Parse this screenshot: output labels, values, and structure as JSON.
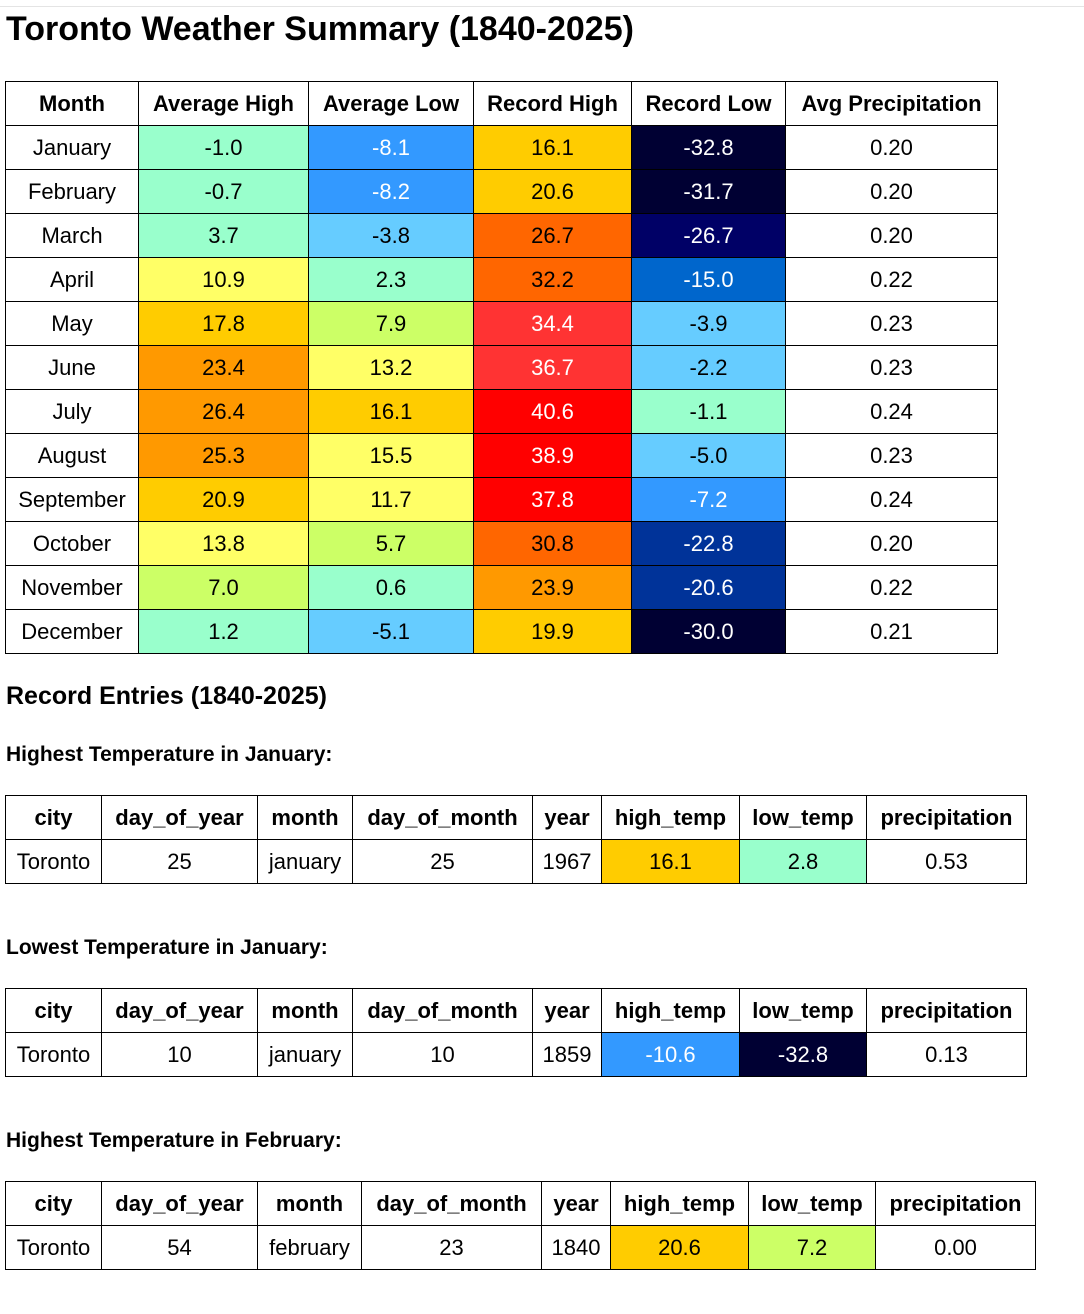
{
  "title": "Toronto Weather Summary (1840-2025)",
  "summary": {
    "headers": [
      "Month",
      "Average High",
      "Average Low",
      "Record High",
      "Record Low",
      "Avg Precipitation"
    ],
    "rows": [
      {
        "cells": [
          "January",
          "-1.0",
          "-8.1",
          "16.1",
          "-32.8",
          "0.20"
        ],
        "bg": [
          "#ffffff",
          "#99ffcc",
          "#3399ff",
          "#ffcc00",
          "#000033",
          "#ffffff"
        ],
        "fg": [
          "#000000",
          "#000000",
          "#ffffff",
          "#000000",
          "#ffffff",
          "#000000"
        ]
      },
      {
        "cells": [
          "February",
          "-0.7",
          "-8.2",
          "20.6",
          "-31.7",
          "0.20"
        ],
        "bg": [
          "#ffffff",
          "#99ffcc",
          "#3399ff",
          "#ffcc00",
          "#000033",
          "#ffffff"
        ],
        "fg": [
          "#000000",
          "#000000",
          "#ffffff",
          "#000000",
          "#ffffff",
          "#000000"
        ]
      },
      {
        "cells": [
          "March",
          "3.7",
          "-3.8",
          "26.7",
          "-26.7",
          "0.20"
        ],
        "bg": [
          "#ffffff",
          "#99ffcc",
          "#66ccff",
          "#ff6600",
          "#000066",
          "#ffffff"
        ],
        "fg": [
          "#000000",
          "#000000",
          "#000000",
          "#000000",
          "#ffffff",
          "#000000"
        ]
      },
      {
        "cells": [
          "April",
          "10.9",
          "2.3",
          "32.2",
          "-15.0",
          "0.22"
        ],
        "bg": [
          "#ffffff",
          "#ffff66",
          "#99ffcc",
          "#ff6600",
          "#0066cc",
          "#ffffff"
        ],
        "fg": [
          "#000000",
          "#000000",
          "#000000",
          "#000000",
          "#ffffff",
          "#000000"
        ]
      },
      {
        "cells": [
          "May",
          "17.8",
          "7.9",
          "34.4",
          "-3.9",
          "0.23"
        ],
        "bg": [
          "#ffffff",
          "#ffcc00",
          "#ccff66",
          "#ff3333",
          "#66ccff",
          "#ffffff"
        ],
        "fg": [
          "#000000",
          "#000000",
          "#000000",
          "#ffffff",
          "#000000",
          "#000000"
        ]
      },
      {
        "cells": [
          "June",
          "23.4",
          "13.2",
          "36.7",
          "-2.2",
          "0.23"
        ],
        "bg": [
          "#ffffff",
          "#ff9900",
          "#ffff66",
          "#ff3333",
          "#66ccff",
          "#ffffff"
        ],
        "fg": [
          "#000000",
          "#000000",
          "#000000",
          "#ffffff",
          "#000000",
          "#000000"
        ]
      },
      {
        "cells": [
          "July",
          "26.4",
          "16.1",
          "40.6",
          "-1.1",
          "0.24"
        ],
        "bg": [
          "#ffffff",
          "#ff9900",
          "#ffcc00",
          "#ff0000",
          "#99ffcc",
          "#ffffff"
        ],
        "fg": [
          "#000000",
          "#000000",
          "#000000",
          "#ffffff",
          "#000000",
          "#000000"
        ]
      },
      {
        "cells": [
          "August",
          "25.3",
          "15.5",
          "38.9",
          "-5.0",
          "0.23"
        ],
        "bg": [
          "#ffffff",
          "#ff9900",
          "#ffff66",
          "#ff0000",
          "#66ccff",
          "#ffffff"
        ],
        "fg": [
          "#000000",
          "#000000",
          "#000000",
          "#ffffff",
          "#000000",
          "#000000"
        ]
      },
      {
        "cells": [
          "September",
          "20.9",
          "11.7",
          "37.8",
          "-7.2",
          "0.24"
        ],
        "bg": [
          "#ffffff",
          "#ffcc00",
          "#ffff66",
          "#ff0000",
          "#3399ff",
          "#ffffff"
        ],
        "fg": [
          "#000000",
          "#000000",
          "#000000",
          "#ffffff",
          "#ffffff",
          "#000000"
        ]
      },
      {
        "cells": [
          "October",
          "13.8",
          "5.7",
          "30.8",
          "-22.8",
          "0.20"
        ],
        "bg": [
          "#ffffff",
          "#ffff66",
          "#ccff66",
          "#ff6600",
          "#003399",
          "#ffffff"
        ],
        "fg": [
          "#000000",
          "#000000",
          "#000000",
          "#000000",
          "#ffffff",
          "#000000"
        ]
      },
      {
        "cells": [
          "November",
          "7.0",
          "0.6",
          "23.9",
          "-20.6",
          "0.22"
        ],
        "bg": [
          "#ffffff",
          "#ccff66",
          "#99ffcc",
          "#ff9900",
          "#003399",
          "#ffffff"
        ],
        "fg": [
          "#000000",
          "#000000",
          "#000000",
          "#000000",
          "#ffffff",
          "#000000"
        ]
      },
      {
        "cells": [
          "December",
          "1.2",
          "-5.1",
          "19.9",
          "-30.0",
          "0.21"
        ],
        "bg": [
          "#ffffff",
          "#99ffcc",
          "#66ccff",
          "#ffcc00",
          "#000033",
          "#ffffff"
        ],
        "fg": [
          "#000000",
          "#000000",
          "#000000",
          "#000000",
          "#ffffff",
          "#000000"
        ]
      }
    ]
  },
  "records_title": "Record Entries (1840-2025)",
  "records": [
    {
      "heading": "Highest Temperature in January:",
      "headers": [
        "city",
        "day_of_year",
        "month",
        "day_of_month",
        "year",
        "high_temp",
        "low_temp",
        "precipitation"
      ],
      "cells": [
        "Toronto",
        "25",
        "january",
        "25",
        "1967",
        "16.1",
        "2.8",
        "0.53"
      ],
      "bg": [
        "#ffffff",
        "#ffffff",
        "#ffffff",
        "#ffffff",
        "#ffffff",
        "#ffcc00",
        "#99ffcc",
        "#ffffff"
      ],
      "fg": [
        "#000000",
        "#000000",
        "#000000",
        "#000000",
        "#000000",
        "#000000",
        "#000000",
        "#000000"
      ]
    },
    {
      "heading": "Lowest Temperature in January:",
      "headers": [
        "city",
        "day_of_year",
        "month",
        "day_of_month",
        "year",
        "high_temp",
        "low_temp",
        "precipitation"
      ],
      "cells": [
        "Toronto",
        "10",
        "january",
        "10",
        "1859",
        "-10.6",
        "-32.8",
        "0.13"
      ],
      "bg": [
        "#ffffff",
        "#ffffff",
        "#ffffff",
        "#ffffff",
        "#ffffff",
        "#3399ff",
        "#000033",
        "#ffffff"
      ],
      "fg": [
        "#000000",
        "#000000",
        "#000000",
        "#000000",
        "#000000",
        "#ffffff",
        "#ffffff",
        "#000000"
      ]
    },
    {
      "heading": "Highest Temperature in February:",
      "headers": [
        "city",
        "day_of_year",
        "month",
        "day_of_month",
        "year",
        "high_temp",
        "low_temp",
        "precipitation"
      ],
      "cells": [
        "Toronto",
        "54",
        "february",
        "23",
        "1840",
        "20.6",
        "7.2",
        "0.00"
      ],
      "bg": [
        "#ffffff",
        "#ffffff",
        "#ffffff",
        "#ffffff",
        "#ffffff",
        "#ffcc00",
        "#ccff66",
        "#ffffff"
      ],
      "fg": [
        "#000000",
        "#000000",
        "#000000",
        "#000000",
        "#000000",
        "#000000",
        "#000000",
        "#000000"
      ]
    }
  ]
}
